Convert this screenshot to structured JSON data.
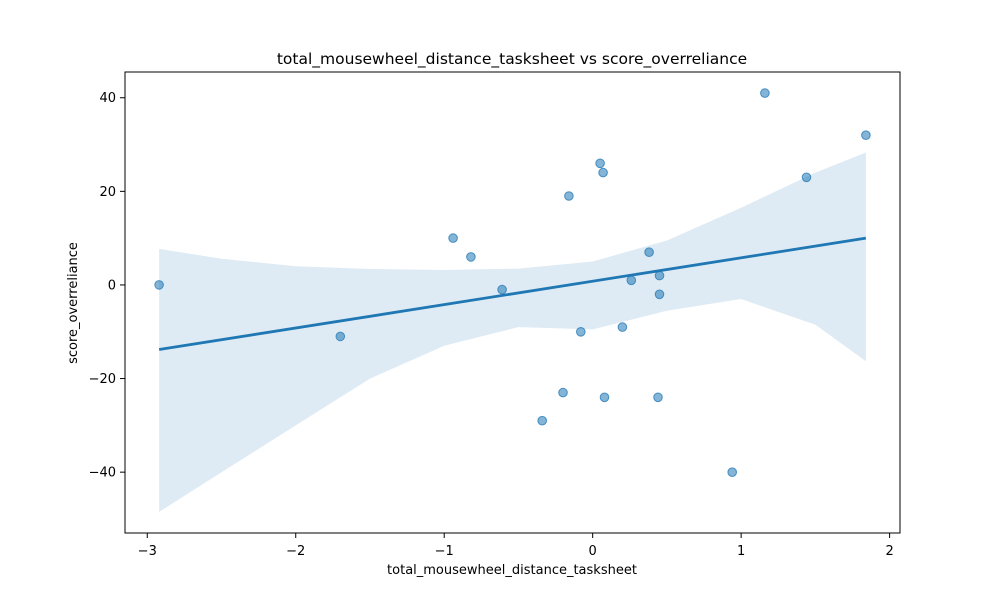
{
  "chart_data": {
    "type": "scatter",
    "title": "total_mousewheel_distance_tasksheet vs score_overreliance",
    "xlabel": "total_mousewheel_distance_tasksheet",
    "ylabel": "score_overreliance",
    "xlim": [
      -3.15,
      2.07
    ],
    "ylim": [
      -53,
      45.5
    ],
    "xticks": [
      -3,
      -2,
      -1,
      0,
      1,
      2
    ],
    "yticks": [
      -40,
      -20,
      0,
      20,
      40
    ],
    "grid": false,
    "colors": {
      "points": "#1f77b4",
      "line": "#1f77b4",
      "band": "#1f77b4"
    },
    "points": [
      {
        "x": -2.92,
        "y": 0
      },
      {
        "x": -1.7,
        "y": -11
      },
      {
        "x": -0.94,
        "y": 10
      },
      {
        "x": -0.82,
        "y": 6
      },
      {
        "x": -0.61,
        "y": -1
      },
      {
        "x": -0.34,
        "y": -29
      },
      {
        "x": -0.2,
        "y": -23
      },
      {
        "x": -0.16,
        "y": 19
      },
      {
        "x": -0.08,
        "y": -10
      },
      {
        "x": 0.05,
        "y": 26
      },
      {
        "x": 0.07,
        "y": 24
      },
      {
        "x": 0.08,
        "y": -24
      },
      {
        "x": 0.2,
        "y": -9
      },
      {
        "x": 0.26,
        "y": 1
      },
      {
        "x": 0.38,
        "y": 7
      },
      {
        "x": 0.44,
        "y": -24
      },
      {
        "x": 0.45,
        "y": 2
      },
      {
        "x": 0.45,
        "y": -2
      },
      {
        "x": 0.94,
        "y": -40
      },
      {
        "x": 1.16,
        "y": 41
      },
      {
        "x": 1.44,
        "y": 23
      },
      {
        "x": 1.84,
        "y": 32
      }
    ],
    "regression_line": {
      "x": [
        -2.92,
        1.84
      ],
      "y": [
        -13.8,
        10.0
      ]
    },
    "confidence_band": {
      "x": [
        -2.92,
        -2.5,
        -2.0,
        -1.5,
        -1.0,
        -0.5,
        0.0,
        0.5,
        1.0,
        1.5,
        1.84
      ],
      "upper": [
        7.7,
        5.6,
        4.0,
        3.4,
        3.2,
        3.5,
        5.0,
        9.5,
        16.5,
        24.0,
        28.3
      ],
      "lower": [
        -48.5,
        -40.0,
        -30.0,
        -20.0,
        -13.0,
        -9.0,
        -9.5,
        -5.5,
        -3.0,
        -8.5,
        -16.3
      ]
    }
  }
}
